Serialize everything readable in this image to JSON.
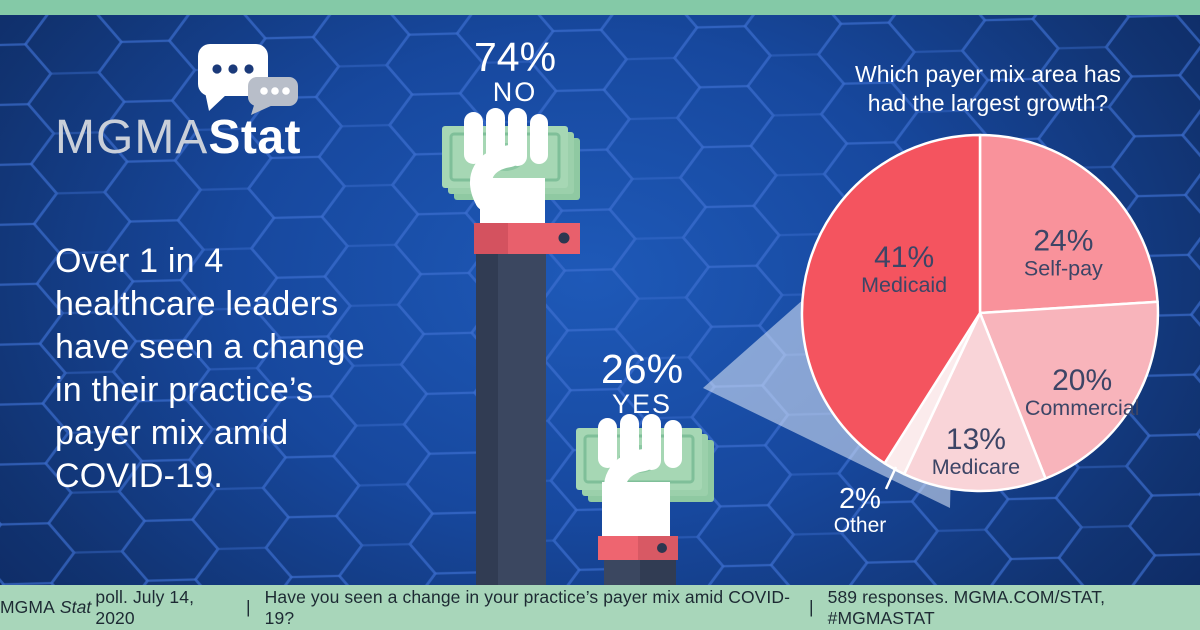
{
  "meta": {
    "brand_mgma": "MGMA",
    "brand_stat": "Stat"
  },
  "headline": {
    "lines": [
      "Over 1 in 4",
      "healthcare leaders",
      "have seen a change",
      "in their practice’s",
      "payer mix amid",
      "COVID-19."
    ]
  },
  "poll": {
    "no": {
      "value": "74%",
      "label": "NO"
    },
    "yes": {
      "value": "26%",
      "label": "YES"
    }
  },
  "pie": {
    "title_lines": [
      "Which payer mix area has",
      "had the largest growth?"
    ],
    "outside_label": {
      "value": "2%",
      "label": "Other"
    }
  },
  "chart_data": [
    {
      "type": "pie",
      "title": "Which payer mix area has had the largest growth?",
      "labels": [
        "Self-pay",
        "Commercial",
        "Medicare",
        "Other",
        "Medicaid"
      ],
      "values": [
        24,
        20,
        13,
        2,
        41
      ],
      "unit": "%",
      "colors": [
        "#f9929b",
        "#f8b4bb",
        "#f9d4d8",
        "#fbebec",
        "#f4545f"
      ],
      "start_angle": "12 o'clock",
      "direction": "clockwise",
      "label_text_color": "#3d4566",
      "label_style": "percent and name inside slice; Other labeled outside with leader line"
    },
    {
      "type": "pie",
      "title": "Have you seen a change in your practice’s payer mix amid COVID-19?",
      "labels": [
        "NO",
        "YES"
      ],
      "values": [
        74,
        26
      ],
      "unit": "%",
      "presentation": "two fists holding money, sized by response share"
    }
  ],
  "footer": {
    "brand": "MGMA",
    "brand_italic": "Stat",
    "poll_info": "poll. July 14, 2020",
    "separator": "|",
    "question": "Have you seen a change in your practice’s payer mix amid COVID-19?",
    "responses": "589 responses. MGMA.COM/STAT, #MGMASTAT"
  },
  "colors": {
    "accent_green_top": "#84c9a7",
    "accent_green_footer": "#a8d6ba",
    "background_navy": "#0d2460",
    "background_highlight": "#1e59b8",
    "hex_line": "#3f6fd1",
    "arm_sleeve": "#3b4760",
    "arm_sleeve_dark": "#313c53",
    "cuff_red": "#e8606c",
    "cuff_red_dark": "#d4525f",
    "money_green": "#a6d7b4",
    "money_green_line": "#7fbf99",
    "pie_label_dark": "#3d4566",
    "beam_blue": "#e3edfb",
    "logo_gray": "#c9cfd9",
    "bubble_gray": "#b8bec9",
    "bubble_dot_navy": "#1b3a7a",
    "footer_text": "#1d2a33"
  }
}
